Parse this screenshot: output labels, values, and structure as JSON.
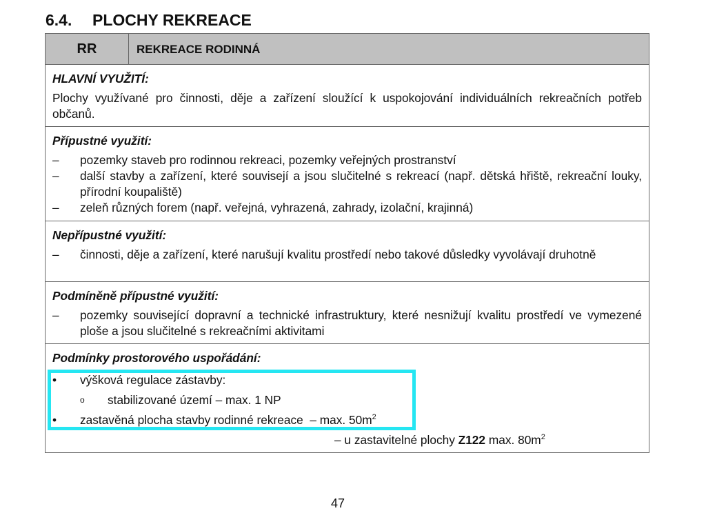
{
  "heading": {
    "number": "6.4.",
    "title": "PLOCHY REKREACE"
  },
  "table": {
    "code": "RR",
    "name": "REKREACE RODINNÁ",
    "main_use": {
      "title": "HLAVNÍ VYUŽITÍ:",
      "text": "Plochy využívané pro činnosti, děje a zařízení sloužící k uspokojování individuálních rekreačních potřeb občanů."
    },
    "permitted": {
      "title": "Přípustné využití:",
      "items": [
        "pozemky staveb pro rodinnou rekreaci, pozemky veřejných prostranství",
        "další stavby a zařízení, které souvisejí a jsou slučitelné s rekreací (např. dětská hřiště, rekreační louky, přírodní koupaliště)",
        "zeleň různých forem (např. veřejná, vyhrazená, zahrady, izolační, krajinná)"
      ]
    },
    "prohibited": {
      "title": "Nepřípustné využití:",
      "items": [
        "činnosti, děje a zařízení, které narušují kvalitu prostředí nebo takové důsledky vyvolávají druhotně"
      ]
    },
    "conditional": {
      "title": "Podmíněně přípustné využití:",
      "items": [
        "pozemky související dopravní a technické infrastruktury, které nesnižují kvalitu prostředí ve vymezené ploše a jsou slučitelné s rekreačními aktivitami"
      ]
    },
    "spatial": {
      "title": "Podmínky prostorového uspořádání:",
      "item1": "výšková regulace zástavby:",
      "item1_sub": "stabilizované území – max. 1 NP",
      "item2": "zastavěná plocha stavby rodinné rekreace  – max. 50m",
      "item2_sup": "2",
      "extra_pre": "– u zastavitelné plochy ",
      "extra_bold": "Z122",
      "extra_post": " max. 80m",
      "extra_sup": "2"
    },
    "dash": "–",
    "bullet": "•",
    "circle": "o"
  },
  "highlight_color": "#25e6f2",
  "page_number": "47"
}
